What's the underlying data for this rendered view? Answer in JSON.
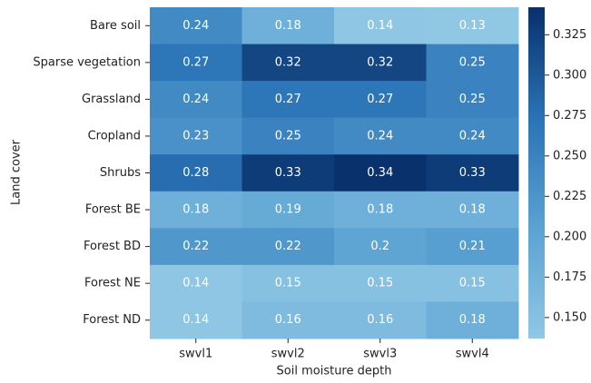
{
  "chart_data": {
    "type": "heatmap",
    "x_label": "Soil moisture depth",
    "y_label": "Land cover",
    "columns": [
      "swvl1",
      "swvl2",
      "swvl3",
      "swvl4"
    ],
    "rows": [
      "Bare soil",
      "Sparse vegetation",
      "Grassland",
      "Cropland",
      "Shrubs",
      "Forest BE",
      "Forest BD",
      "Forest NE",
      "Forest ND"
    ],
    "values": [
      [
        0.24,
        0.18,
        0.14,
        0.13
      ],
      [
        0.27,
        0.32,
        0.32,
        0.25
      ],
      [
        0.24,
        0.27,
        0.27,
        0.25
      ],
      [
        0.23,
        0.25,
        0.24,
        0.24
      ],
      [
        0.28,
        0.33,
        0.34,
        0.33
      ],
      [
        0.18,
        0.19,
        0.18,
        0.18
      ],
      [
        0.22,
        0.22,
        0.2,
        0.21
      ],
      [
        0.14,
        0.15,
        0.15,
        0.15
      ],
      [
        0.14,
        0.16,
        0.16,
        0.18
      ]
    ],
    "clim": [
      0.137,
      0.342
    ],
    "cticks": [
      {
        "value": 0.15,
        "label": "0.150"
      },
      0.175,
      {
        "value": 0.2,
        "label": "0.200"
      },
      0.225,
      {
        "value": 0.25,
        "label": "0.250"
      },
      0.275,
      {
        "value": 0.3,
        "label": "0.300"
      },
      0.325
    ],
    "colormap": [
      "#90c8e4",
      "#5aa2d2",
      "#2a73b6",
      "#08306b"
    ],
    "label_color": "#ffffff"
  }
}
